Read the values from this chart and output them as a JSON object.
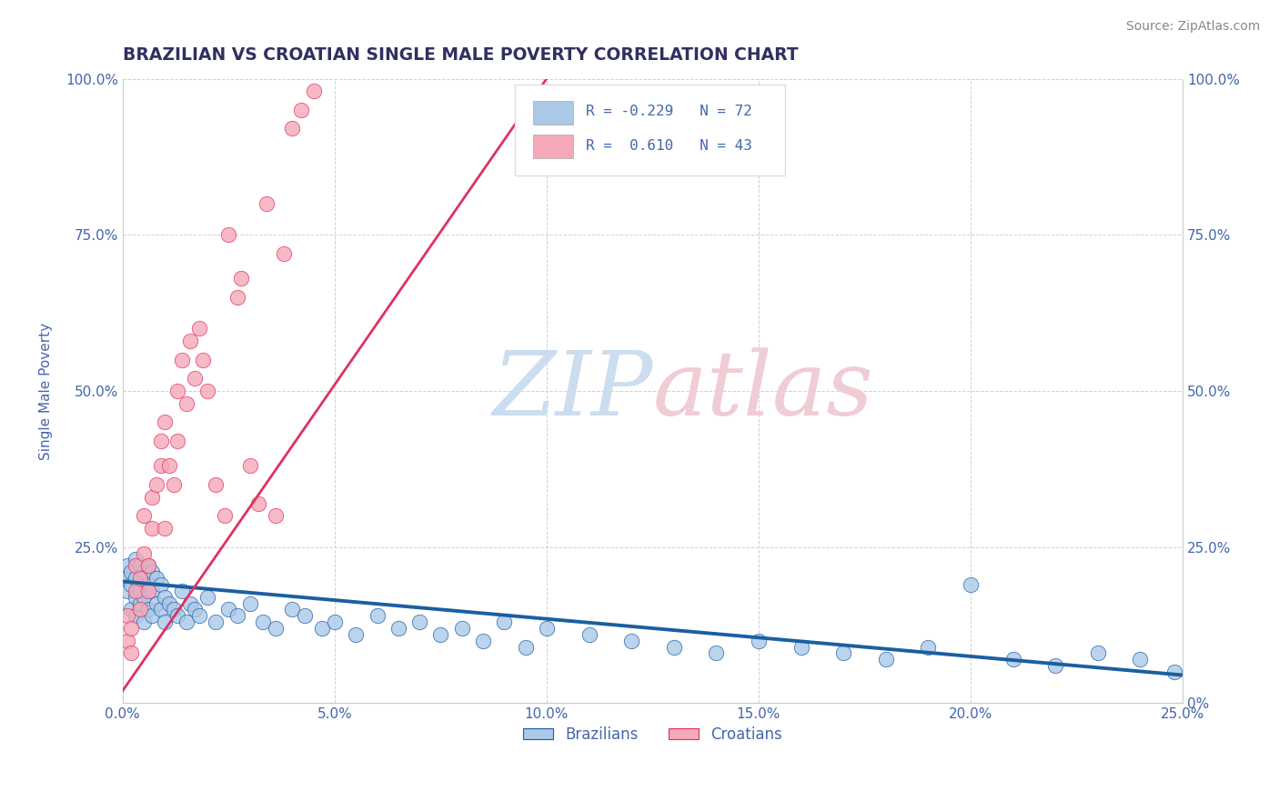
{
  "title": "BRAZILIAN VS CROATIAN SINGLE MALE POVERTY CORRELATION CHART",
  "source_text": "Source: ZipAtlas.com",
  "ylabel": "Single Male Poverty",
  "xlim": [
    0.0,
    0.25
  ],
  "ylim": [
    0.0,
    1.0
  ],
  "xticks": [
    0.0,
    0.05,
    0.1,
    0.15,
    0.2,
    0.25
  ],
  "yticks": [
    0.0,
    0.25,
    0.5,
    0.75,
    1.0
  ],
  "xticklabels": [
    "0.0%",
    "5.0%",
    "10.0%",
    "15.0%",
    "20.0%",
    "25.0%"
  ],
  "yticklabels": [
    "0%",
    "25.0%",
    "50.0%",
    "75.0%",
    "100.0%"
  ],
  "blue_color": "#aac8e8",
  "pink_color": "#f4a8b8",
  "blue_line_color": "#1a5fa0",
  "pink_line_color": "#e03060",
  "title_color": "#303060",
  "tick_color": "#4466aa",
  "watermark_blue": "#ccddf0",
  "watermark_pink": "#f0ccd4",
  "background_color": "#ffffff",
  "grid_color": "#cccccc",
  "brazil_x": [
    0.0005,
    0.001,
    0.001,
    0.002,
    0.002,
    0.002,
    0.003,
    0.003,
    0.003,
    0.003,
    0.004,
    0.004,
    0.004,
    0.005,
    0.005,
    0.005,
    0.006,
    0.006,
    0.006,
    0.007,
    0.007,
    0.007,
    0.008,
    0.008,
    0.009,
    0.009,
    0.01,
    0.01,
    0.011,
    0.012,
    0.013,
    0.014,
    0.015,
    0.016,
    0.017,
    0.018,
    0.02,
    0.022,
    0.025,
    0.027,
    0.03,
    0.033,
    0.036,
    0.04,
    0.043,
    0.047,
    0.05,
    0.055,
    0.06,
    0.065,
    0.07,
    0.075,
    0.08,
    0.085,
    0.09,
    0.095,
    0.1,
    0.11,
    0.12,
    0.13,
    0.14,
    0.15,
    0.16,
    0.17,
    0.18,
    0.19,
    0.2,
    0.21,
    0.22,
    0.23,
    0.24,
    0.248
  ],
  "brazil_y": [
    0.2,
    0.18,
    0.22,
    0.15,
    0.19,
    0.21,
    0.14,
    0.17,
    0.2,
    0.23,
    0.16,
    0.18,
    0.22,
    0.13,
    0.17,
    0.21,
    0.15,
    0.19,
    0.22,
    0.14,
    0.18,
    0.21,
    0.16,
    0.2,
    0.15,
    0.19,
    0.13,
    0.17,
    0.16,
    0.15,
    0.14,
    0.18,
    0.13,
    0.16,
    0.15,
    0.14,
    0.17,
    0.13,
    0.15,
    0.14,
    0.16,
    0.13,
    0.12,
    0.15,
    0.14,
    0.12,
    0.13,
    0.11,
    0.14,
    0.12,
    0.13,
    0.11,
    0.12,
    0.1,
    0.13,
    0.09,
    0.12,
    0.11,
    0.1,
    0.09,
    0.08,
    0.1,
    0.09,
    0.08,
    0.07,
    0.09,
    0.19,
    0.07,
    0.06,
    0.08,
    0.07,
    0.05
  ],
  "croatia_x": [
    0.001,
    0.001,
    0.002,
    0.002,
    0.003,
    0.003,
    0.004,
    0.004,
    0.005,
    0.005,
    0.006,
    0.006,
    0.007,
    0.007,
    0.008,
    0.009,
    0.009,
    0.01,
    0.01,
    0.011,
    0.012,
    0.013,
    0.013,
    0.014,
    0.015,
    0.016,
    0.017,
    0.018,
    0.019,
    0.02,
    0.022,
    0.024,
    0.025,
    0.027,
    0.028,
    0.03,
    0.032,
    0.034,
    0.036,
    0.038,
    0.04,
    0.042,
    0.045
  ],
  "croatia_y": [
    0.1,
    0.14,
    0.08,
    0.12,
    0.22,
    0.18,
    0.15,
    0.2,
    0.24,
    0.3,
    0.18,
    0.22,
    0.28,
    0.33,
    0.35,
    0.38,
    0.42,
    0.28,
    0.45,
    0.38,
    0.35,
    0.5,
    0.42,
    0.55,
    0.48,
    0.58,
    0.52,
    0.6,
    0.55,
    0.5,
    0.35,
    0.3,
    0.75,
    0.65,
    0.68,
    0.38,
    0.32,
    0.8,
    0.3,
    0.72,
    0.92,
    0.95,
    0.98
  ],
  "brazil_line_x": [
    0.0,
    0.25
  ],
  "brazil_line_y": [
    0.195,
    0.045
  ],
  "croatia_line_x": [
    0.0,
    0.1
  ],
  "croatia_line_y": [
    0.02,
    1.0
  ]
}
